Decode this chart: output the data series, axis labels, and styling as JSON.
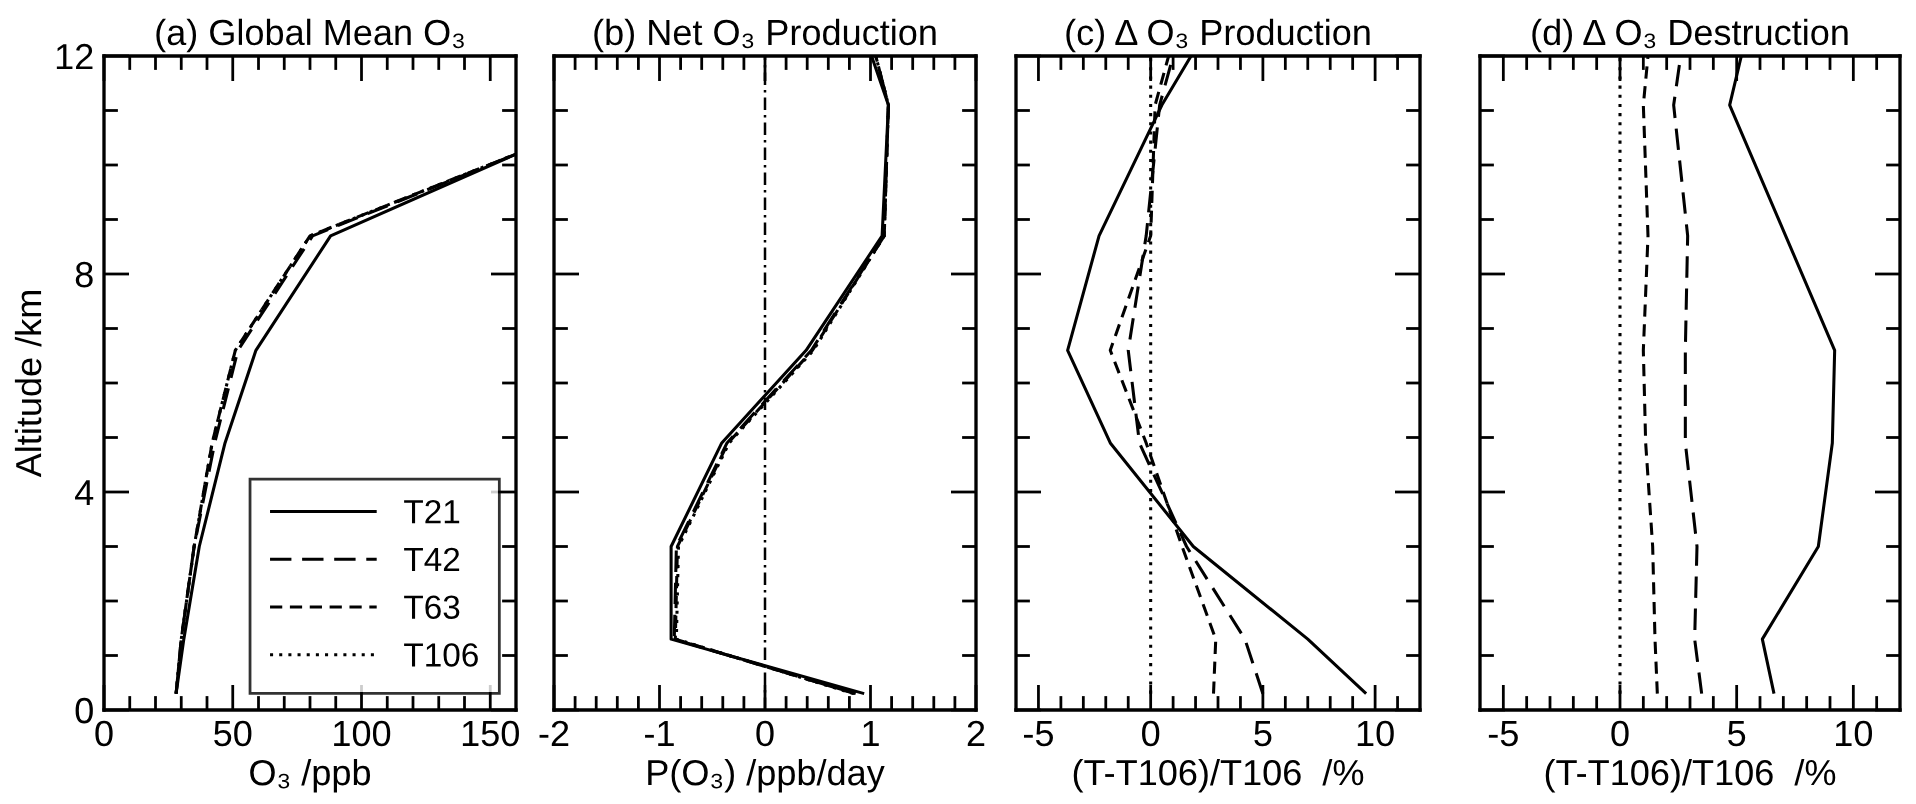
{
  "chart_data": [
    {
      "type": "line",
      "title": "(a) Global Mean O₃",
      "xlabel": "O₃ /ppb",
      "ylabel": "Altitude /km",
      "xlim": [
        0,
        160
      ],
      "ylim": [
        0,
        12
      ],
      "xticks": [
        0,
        {
          "value": 10,
          "label": null
        },
        {
          "value": 20,
          "label": null
        },
        {
          "value": 30,
          "label": null
        },
        {
          "value": 40,
          "label": null
        },
        50,
        {
          "value": 60,
          "label": null
        },
        {
          "value": 70,
          "label": null
        },
        {
          "value": 80,
          "label": null
        },
        {
          "value": 90,
          "label": null
        },
        100,
        {
          "value": 110,
          "label": null
        },
        {
          "value": 120,
          "label": null
        },
        {
          "value": 130,
          "label": null
        },
        {
          "value": 140,
          "label": null
        },
        150
      ],
      "yticks": [
        0,
        {
          "value": 1,
          "label": null
        },
        {
          "value": 2,
          "label": null
        },
        {
          "value": 3,
          "label": null
        },
        4,
        {
          "value": 5,
          "label": null
        },
        {
          "value": 6,
          "label": null
        },
        {
          "value": 7,
          "label": null
        },
        8,
        {
          "value": 9,
          "label": null
        },
        {
          "value": 10,
          "label": null
        },
        {
          "value": 11,
          "label": null
        },
        12
      ],
      "legend": "bottom right",
      "grid": false,
      "marker": "none",
      "series": [
        {
          "name": "T21",
          "color": "#000000",
          "line_style": "solid",
          "x": [
            28,
            31,
            37,
            47,
            59,
            88,
            160
          ],
          "values": [
            0.3,
            1.3,
            3.0,
            4.9,
            6.6,
            8.7,
            10.2
          ]
        },
        {
          "name": "T42",
          "color": "#000000",
          "line_style": "long_dashed",
          "x": [
            28,
            30,
            35,
            43,
            52,
            81,
            160
          ],
          "values": [
            0.3,
            1.3,
            3.0,
            4.9,
            6.6,
            8.7,
            10.2
          ]
        },
        {
          "name": "T63",
          "color": "#000000",
          "line_style": "dashed",
          "x": [
            28,
            30,
            35,
            42,
            51,
            80,
            160
          ],
          "values": [
            0.3,
            1.3,
            3.0,
            4.9,
            6.6,
            8.7,
            10.2
          ]
        },
        {
          "name": "T106",
          "color": "#000000",
          "line_style": "dotted",
          "x": [
            28,
            30,
            35,
            42,
            51,
            80,
            160
          ],
          "values": [
            0.3,
            1.3,
            3.0,
            4.9,
            6.6,
            8.7,
            10.2
          ]
        }
      ]
    },
    {
      "type": "line",
      "title": "(b) Net O₃ Production",
      "xlabel": "P(O₃) /ppb/day",
      "xlim": [
        -2,
        2
      ],
      "ylim": [
        0,
        12
      ],
      "tick_labels": "x",
      "xticks": [
        -2,
        {
          "value": -1.8,
          "label": null
        },
        {
          "value": -1.6,
          "label": null
        },
        {
          "value": -1.4,
          "label": null
        },
        {
          "value": -1.2,
          "label": null
        },
        -1,
        {
          "value": -0.8,
          "label": null
        },
        {
          "value": -0.6,
          "label": null
        },
        {
          "value": -0.4,
          "label": null
        },
        {
          "value": -0.2,
          "label": null
        },
        0,
        {
          "value": 0.2,
          "label": null
        },
        {
          "value": 0.4,
          "label": null
        },
        {
          "value": 0.6,
          "label": null
        },
        {
          "value": 0.8,
          "label": null
        },
        1,
        {
          "value": 1.2,
          "label": null
        },
        {
          "value": 1.4,
          "label": null
        },
        {
          "value": 1.6,
          "label": null
        },
        {
          "value": 1.8,
          "label": null
        },
        2
      ],
      "yticks": [
        0,
        {
          "value": 1,
          "label": null
        },
        {
          "value": 2,
          "label": null
        },
        {
          "value": 3,
          "label": null
        },
        4,
        {
          "value": 5,
          "label": null
        },
        {
          "value": 6,
          "label": null
        },
        {
          "value": 7,
          "label": null
        },
        8,
        {
          "value": 9,
          "label": null
        },
        {
          "value": 10,
          "label": null
        },
        {
          "value": 11,
          "label": null
        },
        12
      ],
      "grid": false,
      "marker": "none",
      "ref_lines": [
        {
          "axis": "x",
          "value": 0,
          "color": "#000000",
          "line_style": "dashdot"
        }
      ],
      "series": [
        {
          "color": "#000000",
          "line_style": "solid",
          "x": [
            0.94,
            -0.89,
            -0.89,
            -0.41,
            0.39,
            1.11,
            1.17,
            1.01
          ],
          "values": [
            0.3,
            1.3,
            3.0,
            4.9,
            6.6,
            8.7,
            11.1,
            12.0
          ]
        },
        {
          "color": "#000000",
          "line_style": "long_dashed",
          "x": [
            0.86,
            -0.86,
            -0.84,
            -0.36,
            0.44,
            1.13,
            1.17,
            1.05
          ],
          "values": [
            0.3,
            1.3,
            3.0,
            4.9,
            6.6,
            8.7,
            11.1,
            12.0
          ]
        },
        {
          "color": "#000000",
          "line_style": "dashed",
          "x": [
            0.85,
            -0.85,
            -0.83,
            -0.35,
            0.45,
            1.13,
            1.17,
            1.05
          ],
          "values": [
            0.3,
            1.3,
            3.0,
            4.9,
            6.6,
            8.7,
            11.1,
            12.0
          ]
        },
        {
          "color": "#000000",
          "line_style": "dotted",
          "x": [
            0.84,
            -0.84,
            -0.82,
            -0.34,
            0.46,
            1.13,
            1.17,
            1.05
          ],
          "values": [
            0.3,
            1.3,
            3.0,
            4.9,
            6.6,
            8.7,
            11.1,
            12.0
          ]
        }
      ]
    },
    {
      "type": "line",
      "title": "(c) Δ O₃ Production",
      "xlabel": "(T-T106)/T106  /%",
      "xlim": [
        -6,
        12
      ],
      "ylim": [
        0,
        12
      ],
      "tick_labels": "x",
      "xticks": [
        -5,
        {
          "value": -4,
          "label": null
        },
        {
          "value": -3,
          "label": null
        },
        {
          "value": -2,
          "label": null
        },
        {
          "value": -1,
          "label": null
        },
        0,
        {
          "value": 1,
          "label": null
        },
        {
          "value": 2,
          "label": null
        },
        {
          "value": 3,
          "label": null
        },
        {
          "value": 4,
          "label": null
        },
        5,
        {
          "value": 6,
          "label": null
        },
        {
          "value": 7,
          "label": null
        },
        {
          "value": 8,
          "label": null
        },
        {
          "value": 9,
          "label": null
        },
        10,
        {
          "value": 11,
          "label": null
        }
      ],
      "yticks": [
        0,
        {
          "value": 1,
          "label": null
        },
        {
          "value": 2,
          "label": null
        },
        {
          "value": 3,
          "label": null
        },
        4,
        {
          "value": 5,
          "label": null
        },
        {
          "value": 6,
          "label": null
        },
        {
          "value": 7,
          "label": null
        },
        8,
        {
          "value": 9,
          "label": null
        },
        {
          "value": 10,
          "label": null
        },
        {
          "value": 11,
          "label": null
        },
        12
      ],
      "grid": false,
      "marker": "none",
      "series": [
        {
          "color": "#000000",
          "line_style": "solid",
          "x": [
            9.6,
            7.0,
            1.9,
            -1.8,
            -3.7,
            -2.3,
            0.5,
            1.8
          ],
          "values": [
            0.3,
            1.3,
            3.0,
            4.9,
            6.6,
            8.7,
            11.1,
            12.0
          ]
        },
        {
          "color": "#000000",
          "line_style": "long_dashed",
          "x": [
            5.0,
            4.2,
            1.6,
            -0.5,
            -1.0,
            -0.2,
            0.4,
            1.0
          ],
          "values": [
            0.3,
            1.3,
            3.0,
            4.9,
            6.6,
            8.7,
            11.1,
            12.0
          ]
        },
        {
          "color": "#000000",
          "line_style": "dashed",
          "x": [
            2.8,
            2.9,
            1.4,
            -0.2,
            -1.8,
            0.0,
            0.2,
            0.8
          ],
          "values": [
            0.3,
            1.3,
            3.0,
            4.9,
            6.6,
            8.7,
            11.1,
            12.0
          ]
        },
        {
          "color": "#000000",
          "line_style": "dotted",
          "x": [
            0,
            0,
            0,
            0,
            0,
            0,
            0,
            0
          ],
          "values": [
            0.3,
            1.3,
            3.0,
            4.9,
            6.6,
            8.7,
            11.1,
            12.0
          ]
        }
      ]
    },
    {
      "type": "line",
      "title": "(d) Δ O₃ Destruction",
      "xlabel": "(T-T106)/T106  /%",
      "xlim": [
        -6,
        12
      ],
      "ylim": [
        0,
        12
      ],
      "tick_labels": "x",
      "xticks": [
        -5,
        {
          "value": -4,
          "label": null
        },
        {
          "value": -3,
          "label": null
        },
        {
          "value": -2,
          "label": null
        },
        {
          "value": -1,
          "label": null
        },
        0,
        {
          "value": 1,
          "label": null
        },
        {
          "value": 2,
          "label": null
        },
        {
          "value": 3,
          "label": null
        },
        {
          "value": 4,
          "label": null
        },
        5,
        {
          "value": 6,
          "label": null
        },
        {
          "value": 7,
          "label": null
        },
        {
          "value": 8,
          "label": null
        },
        {
          "value": 9,
          "label": null
        },
        10,
        {
          "value": 11,
          "label": null
        }
      ],
      "yticks": [
        0,
        {
          "value": 1,
          "label": null
        },
        {
          "value": 2,
          "label": null
        },
        {
          "value": 3,
          "label": null
        },
        4,
        {
          "value": 5,
          "label": null
        },
        {
          "value": 6,
          "label": null
        },
        {
          "value": 7,
          "label": null
        },
        8,
        {
          "value": 9,
          "label": null
        },
        {
          "value": 10,
          "label": null
        },
        {
          "value": 11,
          "label": null
        },
        12
      ],
      "grid": false,
      "marker": "none",
      "series": [
        {
          "color": "#000000",
          "line_style": "solid",
          "x": [
            6.6,
            6.1,
            8.5,
            9.1,
            9.2,
            7.1,
            4.7,
            5.2
          ],
          "values": [
            0.3,
            1.3,
            3.0,
            4.9,
            6.6,
            8.7,
            11.1,
            12.0
          ]
        },
        {
          "color": "#000000",
          "line_style": "long_dashed",
          "x": [
            3.5,
            3.2,
            3.3,
            2.8,
            2.8,
            2.9,
            2.3,
            2.6
          ],
          "values": [
            0.3,
            1.3,
            3.0,
            4.9,
            6.6,
            8.7,
            11.1,
            12.0
          ]
        },
        {
          "color": "#000000",
          "line_style": "dashed",
          "x": [
            1.6,
            1.5,
            1.4,
            1.1,
            1.0,
            1.2,
            1.0,
            1.2
          ],
          "values": [
            0.3,
            1.3,
            3.0,
            4.9,
            6.6,
            8.7,
            11.1,
            12.0
          ]
        },
        {
          "color": "#000000",
          "line_style": "dotted",
          "x": [
            0,
            0,
            0,
            0,
            0,
            0,
            0,
            0
          ],
          "values": [
            0.3,
            1.3,
            3.0,
            4.9,
            6.6,
            8.7,
            11.1,
            12.0
          ]
        }
      ]
    }
  ]
}
